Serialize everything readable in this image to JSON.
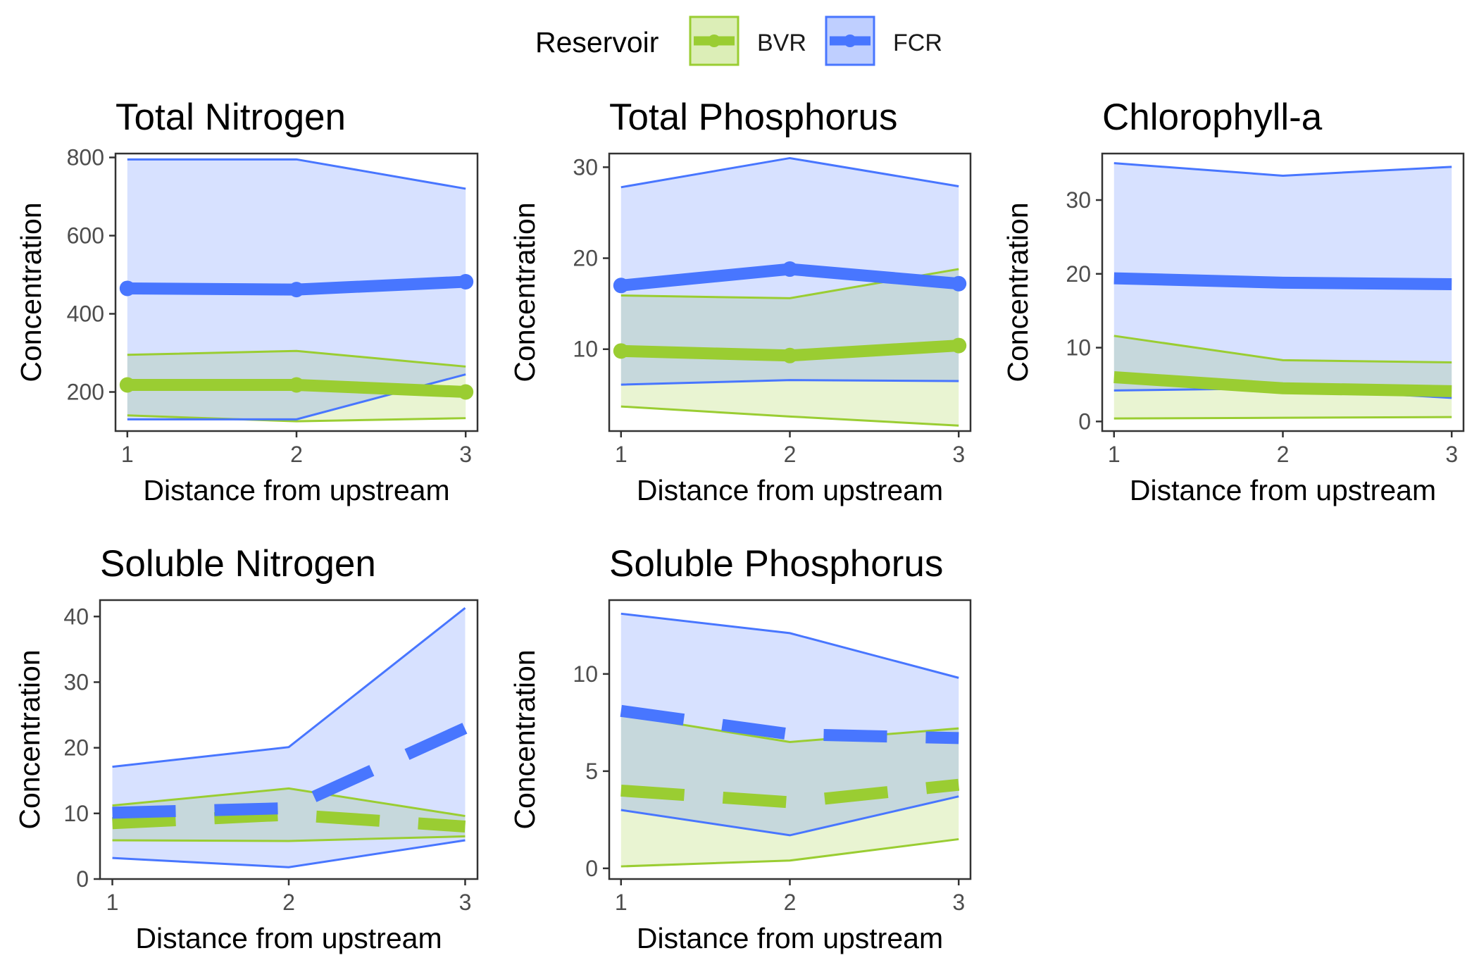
{
  "legend": {
    "title": "Reservoir",
    "items": [
      {
        "label": "BVR",
        "line_color": "#9acd32",
        "fill_color": "#9acd32"
      },
      {
        "label": "FCR",
        "line_color": "#4876ff",
        "fill_color": "#4876ff"
      }
    ]
  },
  "chart_data": [
    {
      "type": "line",
      "title": "Total Nitrogen",
      "xlabel": "Distance from upstream",
      "ylabel": "Concentration",
      "x": [
        1,
        2,
        3
      ],
      "xlim": [
        0.93,
        3.07
      ],
      "ylim": [
        100,
        810
      ],
      "yticks": [
        200,
        400,
        600,
        800
      ],
      "series": [
        {
          "name": "BVR",
          "color": "#9acd32",
          "line": "solid",
          "points": true,
          "mean": [
            218,
            218,
            200
          ],
          "min": [
            140,
            125,
            133
          ],
          "max": [
            295,
            305,
            265
          ]
        },
        {
          "name": "FCR",
          "color": "#4876ff",
          "line": "solid",
          "points": true,
          "mean": [
            465,
            462,
            482
          ],
          "min": [
            130,
            130,
            245
          ],
          "max": [
            795,
            795,
            720
          ]
        }
      ]
    },
    {
      "type": "line",
      "title": "Total Phosphorus",
      "xlabel": "Distance from upstream",
      "ylabel": "Concentration",
      "x": [
        1,
        2,
        3
      ],
      "xlim": [
        0.93,
        3.07
      ],
      "ylim": [
        1,
        31.5
      ],
      "yticks": [
        10,
        20,
        30
      ],
      "series": [
        {
          "name": "BVR",
          "color": "#9acd32",
          "line": "solid",
          "points": true,
          "mean": [
            9.8,
            9.3,
            10.4
          ],
          "min": [
            3.7,
            2.6,
            1.6
          ],
          "max": [
            15.9,
            15.6,
            18.8
          ]
        },
        {
          "name": "FCR",
          "color": "#4876ff",
          "line": "solid",
          "points": true,
          "mean": [
            17.0,
            18.8,
            17.2
          ],
          "min": [
            6.1,
            6.6,
            6.5
          ],
          "max": [
            27.8,
            31.0,
            27.9
          ]
        }
      ]
    },
    {
      "type": "line",
      "title": "Chlorophyll-a",
      "xlabel": "Distance from upstream",
      "ylabel": "Concentration",
      "x": [
        1,
        2,
        3
      ],
      "xlim": [
        0.93,
        3.07
      ],
      "ylim": [
        -1.3,
        36.3
      ],
      "yticks": [
        0,
        10,
        20,
        30
      ],
      "series": [
        {
          "name": "BVR",
          "color": "#9acd32",
          "line": "solid",
          "points": false,
          "mean": [
            6.0,
            4.5,
            4.1
          ],
          "min": [
            0.4,
            0.5,
            0.6
          ],
          "max": [
            11.6,
            8.3,
            8.0
          ]
        },
        {
          "name": "FCR",
          "color": "#4876ff",
          "line": "solid",
          "points": false,
          "mean": [
            19.4,
            18.8,
            18.6
          ],
          "min": [
            4.2,
            4.5,
            3.2
          ],
          "max": [
            35.0,
            33.3,
            34.5
          ]
        }
      ]
    },
    {
      "type": "line",
      "title": "Soluble Nitrogen",
      "xlabel": "Distance from upstream",
      "ylabel": "Concentration",
      "x": [
        1,
        2,
        3
      ],
      "xlim": [
        0.93,
        3.07
      ],
      "ylim": [
        0,
        42.5
      ],
      "yticks": [
        0,
        10,
        20,
        30,
        40
      ],
      "series": [
        {
          "name": "BVR",
          "color": "#9acd32",
          "line": "dashed",
          "points": false,
          "mean": [
            8.5,
            9.8,
            8.0
          ],
          "min": [
            5.9,
            5.8,
            6.5
          ],
          "max": [
            11.2,
            13.8,
            9.6
          ]
        },
        {
          "name": "FCR",
          "color": "#4876ff",
          "line": "dashed",
          "points": false,
          "mean": [
            10.1,
            10.8,
            23.0
          ],
          "min": [
            3.2,
            1.8,
            5.9
          ],
          "max": [
            17.1,
            20.1,
            41.3
          ]
        }
      ]
    },
    {
      "type": "line",
      "title": "Soluble Phosphorus",
      "xlabel": "Distance from upstream",
      "ylabel": "Concentration",
      "x": [
        1,
        2,
        3
      ],
      "xlim": [
        0.93,
        3.07
      ],
      "ylim": [
        -0.55,
        13.8
      ],
      "yticks": [
        0,
        5,
        10
      ],
      "series": [
        {
          "name": "BVR",
          "color": "#9acd32",
          "line": "dashed",
          "points": false,
          "mean": [
            4.0,
            3.4,
            4.3
          ],
          "min": [
            0.1,
            0.4,
            1.5
          ],
          "max": [
            7.9,
            6.5,
            7.2
          ]
        },
        {
          "name": "FCR",
          "color": "#4876ff",
          "line": "dashed",
          "points": false,
          "mean": [
            8.1,
            6.9,
            6.7
          ],
          "min": [
            3.0,
            1.7,
            3.7
          ],
          "max": [
            13.1,
            12.1,
            9.8
          ]
        }
      ]
    }
  ]
}
